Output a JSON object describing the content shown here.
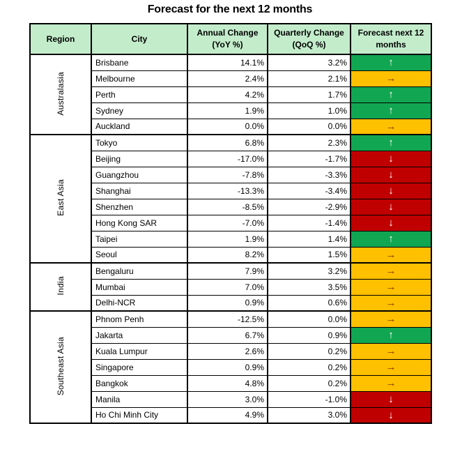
{
  "title": "Forecast for the next 12 months",
  "header": {
    "region": "Region",
    "city": "City",
    "annual": [
      "Annual Change",
      "(YoY %)"
    ],
    "quarterly": [
      "Quarterly Change",
      "(QoQ %)"
    ],
    "forecast": [
      "Forecast next 12",
      "months"
    ]
  },
  "ui": {
    "colors": {
      "header_bg": "#C3ECCB",
      "up": "#11A651",
      "steady": "#FFC000",
      "down": "#C00000",
      "arrow_light": "#FFFFFF",
      "arrow_on_steady": "#843C0C",
      "border": "#000000"
    },
    "arrows": {
      "up": "↑",
      "steady": "→",
      "down": "↓"
    }
  },
  "chart_data": {
    "type": "table",
    "title": "Forecast for the next 12 months",
    "columns": [
      "Region",
      "City",
      "Annual Change (YoY %)",
      "Quarterly Change (QoQ %)",
      "Forecast next 12 months"
    ],
    "regions": [
      {
        "name": "Australasia",
        "rows": [
          {
            "city": "Brisbane",
            "yoy": "14.1%",
            "qoq": "3.2%",
            "forecast": "up"
          },
          {
            "city": "Melbourne",
            "yoy": "2.4%",
            "qoq": "2.1%",
            "forecast": "steady"
          },
          {
            "city": "Perth",
            "yoy": "4.2%",
            "qoq": "1.7%",
            "forecast": "up"
          },
          {
            "city": "Sydney",
            "yoy": "1.9%",
            "qoq": "1.0%",
            "forecast": "up"
          },
          {
            "city": "Auckland",
            "yoy": "0.0%",
            "qoq": "0.0%",
            "forecast": "steady"
          }
        ]
      },
      {
        "name": "East Asia",
        "rows": [
          {
            "city": "Tokyo",
            "yoy": "6.8%",
            "qoq": "2.3%",
            "forecast": "up"
          },
          {
            "city": "Beijing",
            "yoy": "-17.0%",
            "qoq": "-1.7%",
            "forecast": "down"
          },
          {
            "city": "Guangzhou",
            "yoy": "-7.8%",
            "qoq": "-3.3%",
            "forecast": "down"
          },
          {
            "city": "Shanghai",
            "yoy": "-13.3%",
            "qoq": "-3.4%",
            "forecast": "down"
          },
          {
            "city": "Shenzhen",
            "yoy": "-8.5%",
            "qoq": "-2.9%",
            "forecast": "down"
          },
          {
            "city": "Hong Kong SAR",
            "yoy": "-7.0%",
            "qoq": "-1.4%",
            "forecast": "down"
          },
          {
            "city": "Taipei",
            "yoy": "1.9%",
            "qoq": "1.4%",
            "forecast": "up"
          },
          {
            "city": "Seoul",
            "yoy": "8.2%",
            "qoq": "1.5%",
            "forecast": "steady"
          }
        ]
      },
      {
        "name": "India",
        "rows": [
          {
            "city": "Bengaluru",
            "yoy": "7.9%",
            "qoq": "3.2%",
            "forecast": "steady"
          },
          {
            "city": "Mumbai",
            "yoy": "7.0%",
            "qoq": "3.5%",
            "forecast": "steady"
          },
          {
            "city": "Delhi-NCR",
            "yoy": "0.9%",
            "qoq": "0.6%",
            "forecast": "steady"
          }
        ]
      },
      {
        "name": "Southeast Asia",
        "rows": [
          {
            "city": "Phnom Penh",
            "yoy": "-12.5%",
            "qoq": "0.0%",
            "forecast": "steady"
          },
          {
            "city": "Jakarta",
            "yoy": "6.7%",
            "qoq": "0.9%",
            "forecast": "up"
          },
          {
            "city": "Kuala Lumpur",
            "yoy": "2.6%",
            "qoq": "0.2%",
            "forecast": "steady"
          },
          {
            "city": "Singapore",
            "yoy": "0.9%",
            "qoq": "0.2%",
            "forecast": "steady"
          },
          {
            "city": "Bangkok",
            "yoy": "4.8%",
            "qoq": "0.2%",
            "forecast": "steady"
          },
          {
            "city": "Manila",
            "yoy": "3.0%",
            "qoq": "-1.0%",
            "forecast": "down"
          },
          {
            "city": "Ho Chi Minh City",
            "yoy": "4.9%",
            "qoq": "3.0%",
            "forecast": "down"
          }
        ]
      }
    ]
  }
}
